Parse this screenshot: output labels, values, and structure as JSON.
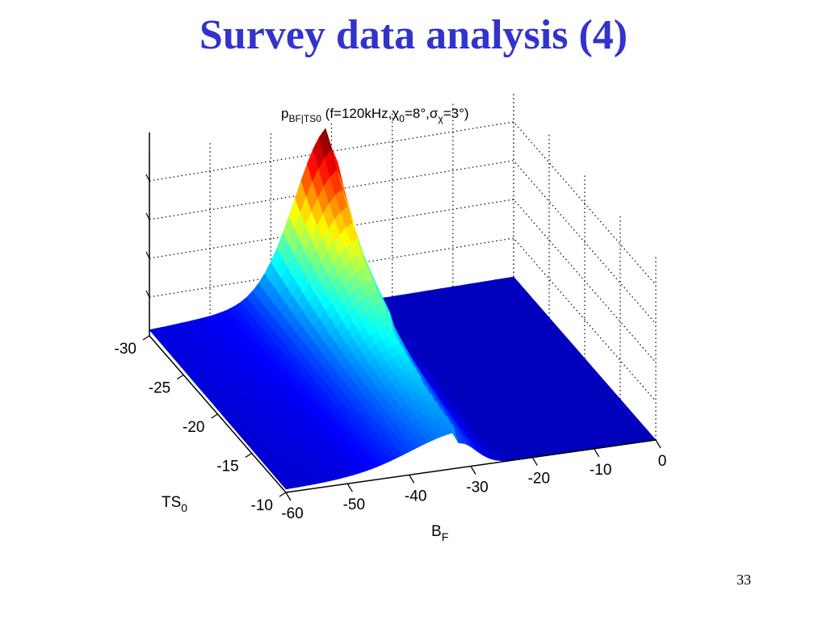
{
  "slide": {
    "title": "Survey data analysis (4)",
    "page_number": "33"
  },
  "chart_data": {
    "type": "surface",
    "title_parts": {
      "p": "p",
      "p_sub": "BF|TS0",
      "open": " (f=120kHz,",
      "chi": "χ",
      "chi_sub": "0",
      "mid": "=8°,",
      "sigma": "σ",
      "sigma_sub": "χ",
      "end": "=3°)"
    },
    "xlabel": "B",
    "xlabel_sub": "F",
    "ylabel": "TS",
    "ylabel_sub": "0",
    "zlabel": "",
    "x_ticks": [
      -60,
      -50,
      -40,
      -30,
      -20,
      -10,
      0
    ],
    "x_tick_labels": [
      "-60",
      "-50",
      "-40",
      "-30",
      "-20",
      "-10",
      "0"
    ],
    "y_ticks": [
      -30,
      -25,
      -20,
      -15,
      -10
    ],
    "y_tick_labels": [
      "-30",
      "-25",
      "-20",
      "-15",
      "-10"
    ],
    "xlim": [
      -60,
      0
    ],
    "ylim": [
      -30,
      -10
    ],
    "colormap": "jet",
    "grid": true,
    "peak": {
      "B_F": -30,
      "TS_0": -30
    },
    "colors": [
      "#00008f",
      "#0000ff",
      "#0080ff",
      "#00ffff",
      "#80ff80",
      "#ffff00",
      "#ff8000",
      "#ff0000",
      "#800000"
    ]
  }
}
